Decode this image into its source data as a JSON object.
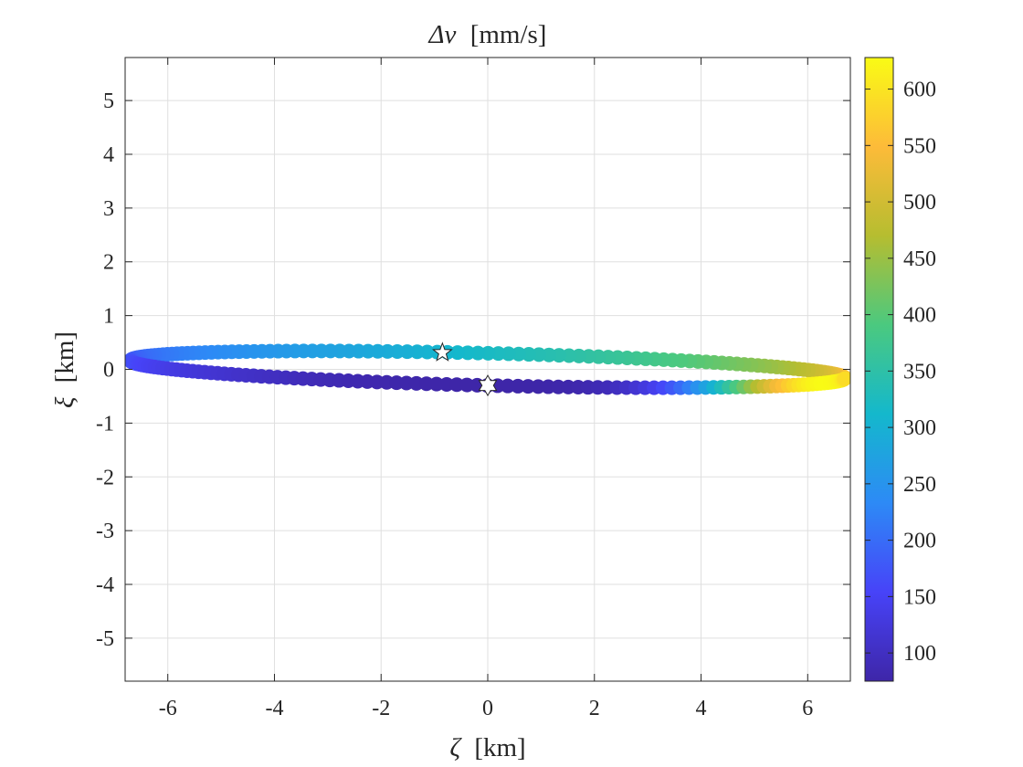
{
  "chart_data": {
    "type": "scatter",
    "title": "Δv [mm/s]",
    "title_symbol": "Δv",
    "title_unit": "[mm/s]",
    "xlabel": "ζ [km]",
    "xlabel_symbol": "ζ",
    "xlabel_unit": "[km]",
    "ylabel": "ξ [km]",
    "ylabel_symbol": "ξ",
    "ylabel_unit": "[km]",
    "xlim": [
      -6.8,
      6.8
    ],
    "ylim": [
      -5.8,
      5.8
    ],
    "xticks": [
      -6,
      -4,
      -2,
      0,
      2,
      4,
      6
    ],
    "xtick_labels": [
      "-6",
      "-4",
      "-2",
      "0",
      "2",
      "4",
      "6"
    ],
    "yticks": [
      -5,
      -4,
      -3,
      -2,
      -1,
      0,
      1,
      2,
      3,
      4,
      5
    ],
    "ytick_labels": [
      "-5",
      "-4",
      "-3",
      "-2",
      "-1",
      "0",
      "1",
      "2",
      "3",
      "4",
      "5"
    ],
    "grid": true,
    "colormap": "parula",
    "colormap_stops": [
      "#3e26a8",
      "#4743f8",
      "#2d8af6",
      "#14b8cc",
      "#4bc97f",
      "#b6bd30",
      "#fdbb39",
      "#f9fb15"
    ],
    "colorbar": {
      "range": [
        75,
        628
      ],
      "ticks": [
        100,
        150,
        200,
        250,
        300,
        350,
        400,
        450,
        500,
        550,
        600
      ],
      "tick_labels": [
        "100",
        "150",
        "200",
        "250",
        "300",
        "350",
        "400",
        "450",
        "500",
        "550",
        "600"
      ]
    },
    "series": [
      {
        "kind": "ellipse",
        "center": [
          0,
          0
        ],
        "semi_axis_zeta": 6.7,
        "semi_axis_xi": 0.3,
        "tilt_deg": -1.4,
        "num_points": 220,
        "dv_range": [
          75,
          628
        ],
        "dv_max_point": [
          6.7,
          -0.1
        ],
        "dv_min_point": [
          0.2,
          -0.3
        ]
      }
    ],
    "markers": [
      {
        "symbol": "star",
        "zeta": -0.85,
        "xi": 0.31
      },
      {
        "symbol": "hexagram",
        "zeta": 0.0,
        "xi": -0.3
      }
    ]
  }
}
